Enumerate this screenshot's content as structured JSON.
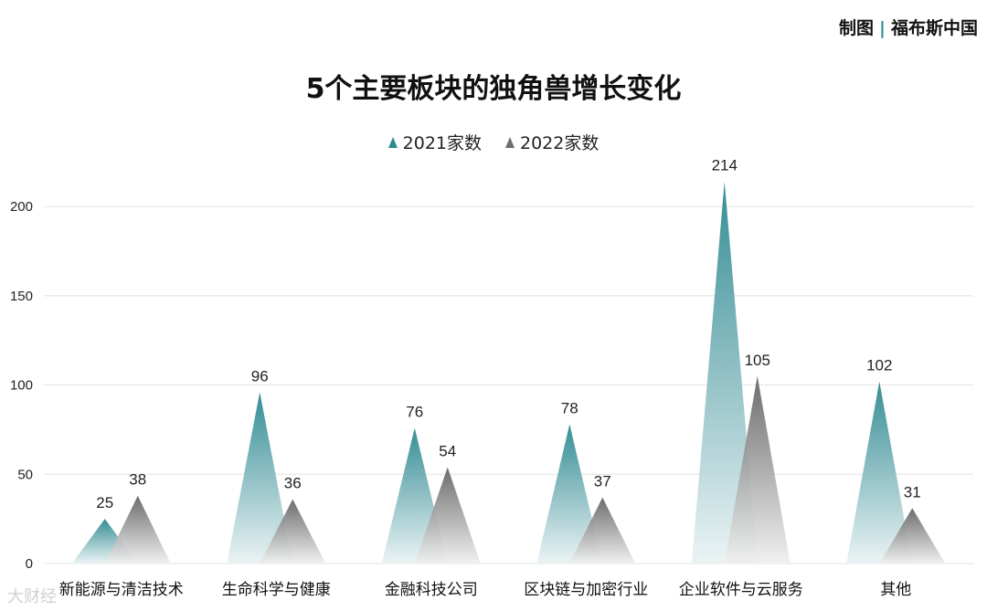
{
  "credit": {
    "label": "制图",
    "source": "福布斯中国"
  },
  "watermark": "大财经",
  "colors": {
    "series2021": "#2d8a92",
    "series2022": "#6e6e6e",
    "grid": "#e2e2e2"
  },
  "chart_data": {
    "type": "bar",
    "title": "5个主要板块的独角兽增长变化",
    "categories": [
      "新能源与清洁技术",
      "生命科学与健康",
      "金融科技公司",
      "区块链与加密行业",
      "企业软件与云服务",
      "其他"
    ],
    "series": [
      {
        "name": "2021家数",
        "values": [
          25,
          96,
          76,
          78,
          214,
          102
        ]
      },
      {
        "name": "2022家数",
        "values": [
          38,
          36,
          54,
          37,
          105,
          31
        ]
      }
    ],
    "ylim": [
      0,
      220
    ],
    "yticks": [
      0,
      50,
      100,
      150,
      200
    ],
    "xlabel": "",
    "ylabel": "",
    "grid": true,
    "legend": "top"
  }
}
